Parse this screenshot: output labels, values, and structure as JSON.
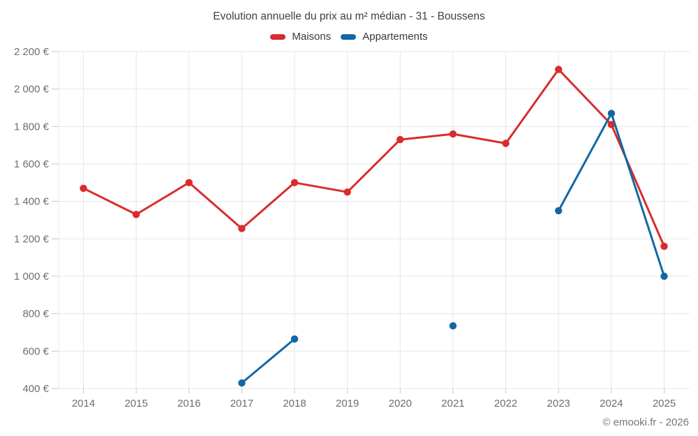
{
  "header": {
    "title": "Evolution annuelle du prix au m² médian - 31 - Boussens"
  },
  "footer": {
    "credit": "© emooki.fr - 2026"
  },
  "chart_data": {
    "type": "line",
    "title": "Evolution annuelle du prix au m² médian - 31 - Boussens",
    "x": [
      "2014",
      "2015",
      "2016",
      "2017",
      "2018",
      "2019",
      "2020",
      "2021",
      "2022",
      "2023",
      "2024",
      "2025"
    ],
    "series": [
      {
        "name": "Maisons",
        "color": "#d92c2c",
        "values": [
          1470,
          1330,
          1500,
          1255,
          1500,
          1450,
          1730,
          1760,
          1710,
          2105,
          1810,
          1160
        ]
      },
      {
        "name": "Appartements",
        "color": "#1268a4",
        "values": [
          null,
          null,
          null,
          430,
          665,
          null,
          null,
          735,
          null,
          1350,
          1870,
          1000
        ]
      }
    ],
    "xlabel": "",
    "ylabel": "",
    "ylim": [
      400,
      2200
    ],
    "ytick_step": 200,
    "ytick_format": "{value} €",
    "grid": true,
    "legend_position": "top"
  },
  "colors": {
    "grid": "#e7e7e7",
    "tick": "#c8c8c8",
    "axis_text": "#6e6e6e",
    "title_text": "#3f3f3f",
    "footer_text": "#757575"
  }
}
